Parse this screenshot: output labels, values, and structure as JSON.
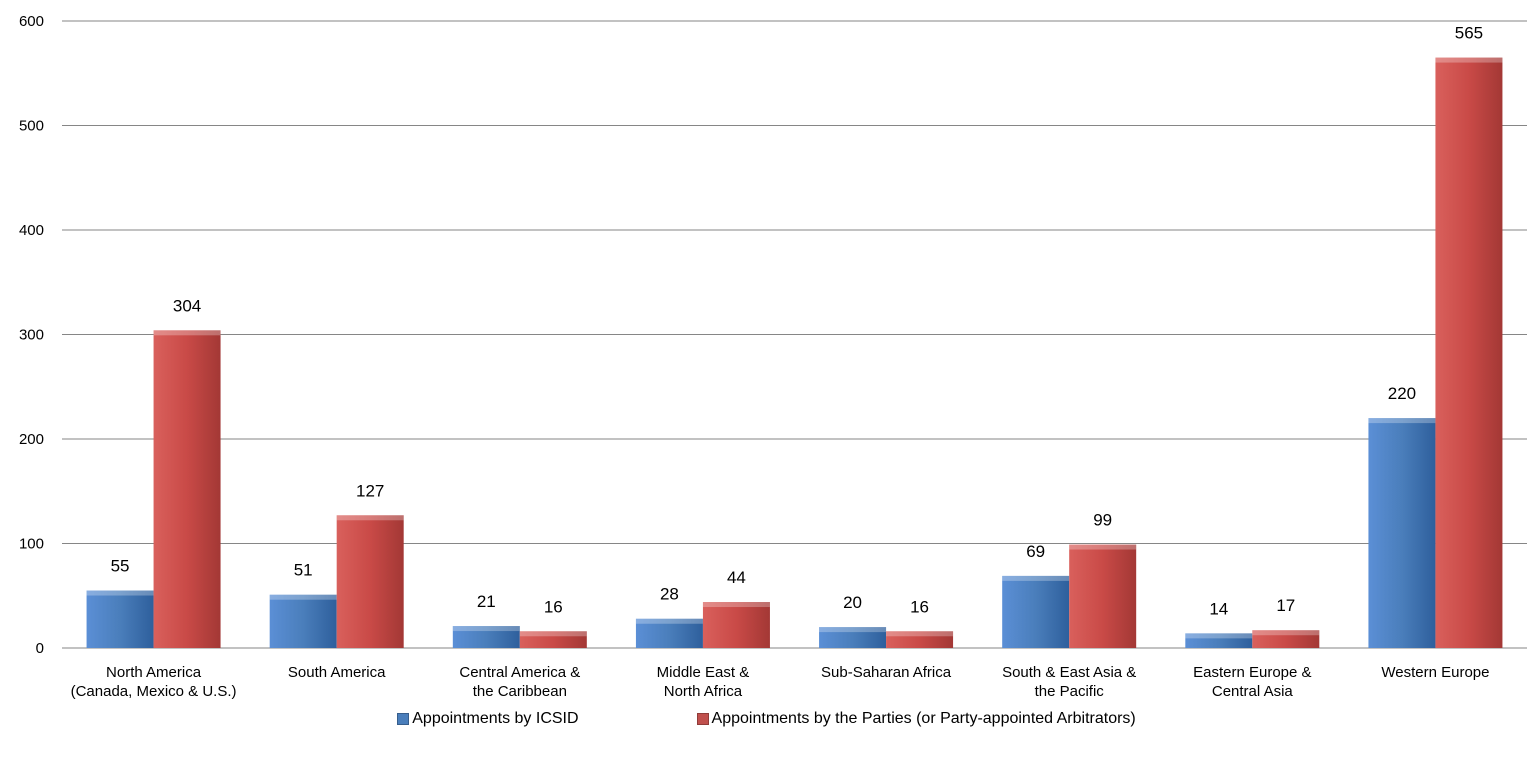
{
  "chart_data": {
    "type": "bar",
    "categories": [
      [
        "North America",
        "(Canada, Mexico & U.S.)"
      ],
      [
        "South America"
      ],
      [
        "Central America &",
        "the Caribbean"
      ],
      [
        "Middle East &",
        "North Africa"
      ],
      [
        "Sub-Saharan Africa"
      ],
      [
        "South & East Asia &",
        "the Pacific"
      ],
      [
        "Eastern Europe &",
        "Central Asia"
      ],
      [
        "Western Europe"
      ]
    ],
    "series": [
      {
        "name": "Appointments by ICSID",
        "color": "#4a7ebb",
        "values": [
          55,
          51,
          21,
          28,
          20,
          69,
          14,
          220
        ]
      },
      {
        "name": "Appointments by the Parties (or Party-appointed Arbitrators)",
        "color": "#c0504d",
        "values": [
          304,
          127,
          16,
          44,
          16,
          99,
          17,
          565
        ]
      }
    ],
    "ylim": [
      0,
      600
    ],
    "yticks": [
      0,
      100,
      200,
      300,
      400,
      500,
      600
    ],
    "grid": true,
    "legend_position": "bottom"
  },
  "legend": {
    "items": [
      {
        "label": "Appointments by ICSID",
        "color": "#4a7ebb"
      },
      {
        "label": "Appointments by the Parties (or Party-appointed Arbitrators)",
        "color": "#c0504d"
      }
    ]
  }
}
